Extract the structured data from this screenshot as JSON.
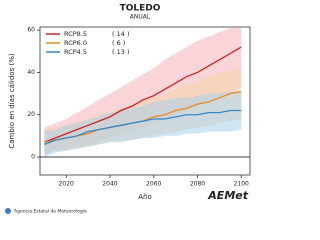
{
  "chart_data": {
    "type": "line",
    "title": "TOLEDO",
    "subtitle": "ANUAL",
    "x_label": "Año",
    "y_label": "Cambio en días cálidos (%)",
    "x": [
      2010,
      2015,
      2020,
      2025,
      2030,
      2035,
      2040,
      2045,
      2050,
      2055,
      2060,
      2065,
      2070,
      2075,
      2080,
      2085,
      2090,
      2095,
      2100
    ],
    "xlim": [
      2008,
      2104
    ],
    "xticks": [
      2020,
      2040,
      2060,
      2080,
      2100
    ],
    "ylim": [
      -8.5,
      61.5
    ],
    "yticks": [
      0,
      20,
      40,
      60
    ],
    "zero_line": true,
    "series": [
      {
        "name": "RCP8.5",
        "ensemble": "( 14 )",
        "color": "#cc2222",
        "band_color": "#f4b3bb",
        "values": [
          7,
          9,
          11,
          13,
          15,
          17,
          19,
          22,
          24,
          27,
          29,
          32,
          35,
          38,
          40,
          43,
          46,
          49,
          52
        ],
        "lower": [
          1,
          3,
          4,
          5,
          6,
          8,
          9,
          11,
          12,
          14,
          16,
          18,
          20,
          22,
          24,
          26,
          28,
          30,
          33
        ],
        "upper": [
          14,
          16,
          18,
          21,
          24,
          27,
          30,
          33,
          36,
          39,
          42,
          46,
          49,
          52,
          55,
          57,
          59,
          61,
          61
        ]
      },
      {
        "name": "RCP6.0",
        "ensemble": "( 6 )",
        "color": "#ee8822",
        "band_color": "#f8d3a8",
        "values": [
          7,
          8,
          9,
          10,
          11,
          13,
          14,
          15,
          16,
          17,
          19,
          20,
          22,
          23,
          25,
          26,
          28,
          30,
          31
        ],
        "lower": [
          2,
          3,
          3,
          4,
          5,
          6,
          7,
          8,
          8,
          9,
          10,
          11,
          12,
          13,
          14,
          15,
          16,
          17,
          18
        ],
        "upper": [
          13,
          14,
          15,
          17,
          18,
          20,
          21,
          23,
          24,
          26,
          28,
          30,
          32,
          34,
          36,
          38,
          40,
          41,
          42
        ]
      },
      {
        "name": "RCP4.5",
        "ensemble": "( 13 )",
        "color": "#3388cc",
        "band_color": "#a8d0ea",
        "values": [
          6,
          8,
          9,
          10,
          12,
          13,
          14,
          15,
          16,
          17,
          18,
          18,
          19,
          20,
          20,
          21,
          21,
          22,
          22
        ],
        "lower": [
          0,
          2,
          3,
          4,
          5,
          6,
          7,
          7,
          8,
          9,
          9,
          10,
          10,
          11,
          11,
          12,
          12,
          12,
          13
        ],
        "upper": [
          12,
          13,
          15,
          16,
          18,
          19,
          21,
          22,
          23,
          24,
          26,
          27,
          28,
          28,
          29,
          30,
          30,
          31,
          31
        ]
      }
    ],
    "footer": "Agencia Estatal de Meteorología",
    "logo": "AEMet"
  }
}
